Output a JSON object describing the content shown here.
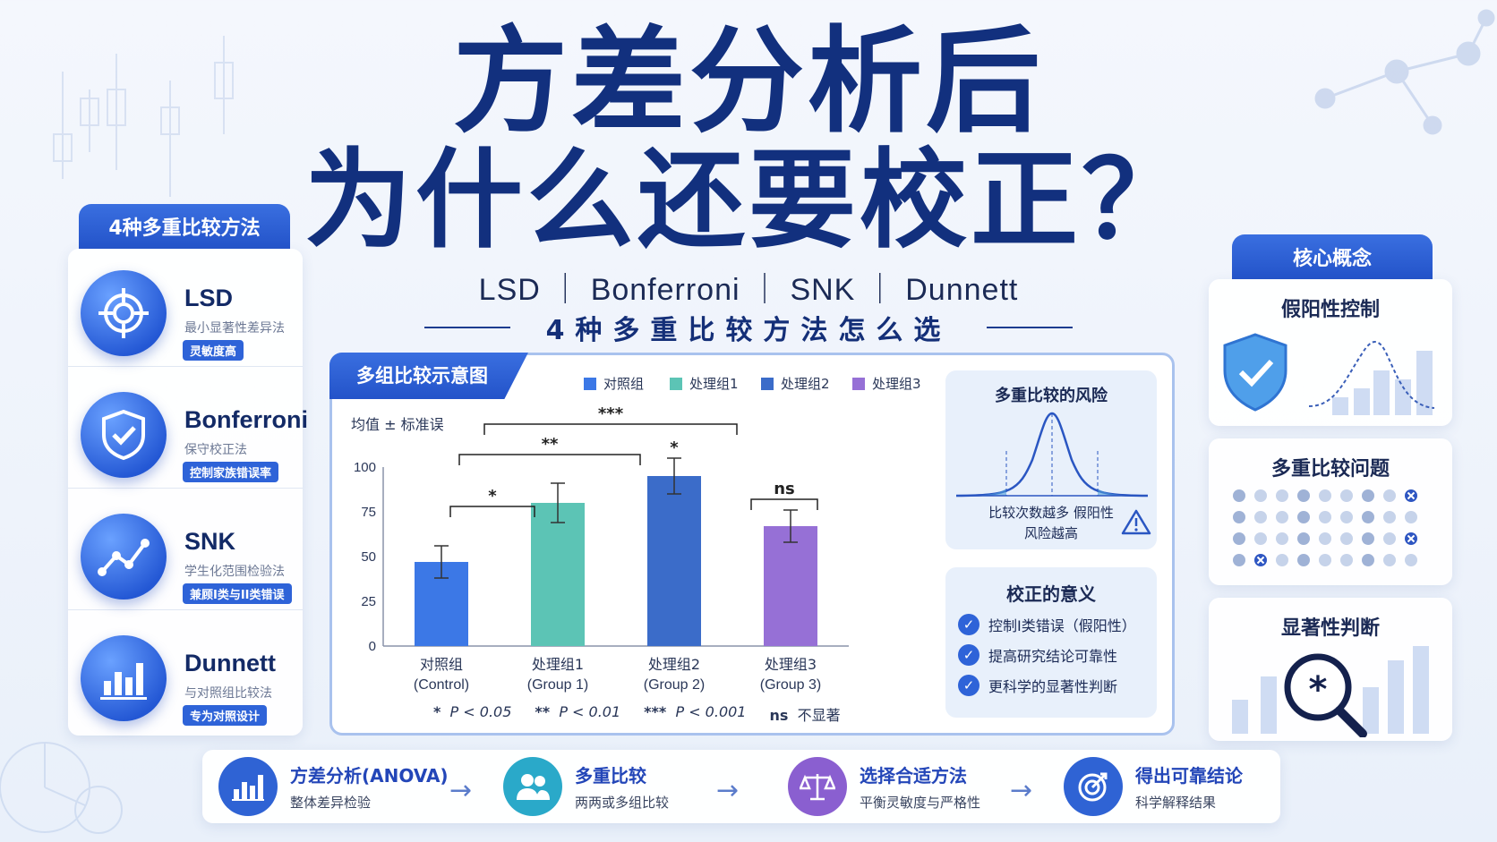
{
  "title": {
    "line1": "方差分析后",
    "line2": "为什么还要校正？"
  },
  "subtitle": "LSD ｜ Bonferroni ｜ SNK ｜ Dunnett",
  "subtitle2": "4种多重比较方法怎么选",
  "left_panel": {
    "header": "4种多重比较方法",
    "methods": [
      {
        "name": "LSD",
        "desc": "最小显著性差异法",
        "tag": "灵敏度高",
        "icon": "target-icon"
      },
      {
        "name": "Bonferroni",
        "desc": "保守校正法",
        "tag": "控制家族错误率",
        "icon": "shield-check-icon"
      },
      {
        "name": "SNK",
        "desc": "学生化范围检验法",
        "tag": "兼顾I类与II类错误",
        "icon": "trend-line-icon"
      },
      {
        "name": "Dunnett",
        "desc": "与对照组比较法",
        "tag": "专为对照设计",
        "icon": "bar-chart-icon"
      }
    ]
  },
  "chart_panel": {
    "header": "多组比较示意图",
    "legend": [
      {
        "label": "对照组",
        "color": "#3c78e6"
      },
      {
        "label": "处理组1",
        "color": "#5cc4b5"
      },
      {
        "label": "处理组2",
        "color": "#3b6cc9"
      },
      {
        "label": "处理组3",
        "color": "#9670d6"
      }
    ],
    "sig_notes": [
      {
        "sym": "*",
        "text": "P < 0.05"
      },
      {
        "sym": "**",
        "text": "P < 0.01"
      },
      {
        "sym": "***",
        "text": "P < 0.001"
      },
      {
        "sym": "ns",
        "text": "不显著"
      }
    ]
  },
  "chart_data": {
    "type": "bar",
    "ylabel": "均值 ± 标准误",
    "ylim": [
      0,
      100
    ],
    "yticks": [
      0,
      25,
      50,
      75,
      100
    ],
    "categories": [
      {
        "line1": "对照组",
        "line2": "(Control)"
      },
      {
        "line1": "处理组1",
        "line2": "(Group 1)"
      },
      {
        "line1": "处理组2",
        "line2": "(Group 2)"
      },
      {
        "line1": "处理组3",
        "line2": "(Group 3)"
      }
    ],
    "values": [
      47,
      80,
      95,
      67
    ],
    "errors": [
      9,
      11,
      10,
      9
    ],
    "colors": [
      "#3c78e6",
      "#5cc4b5",
      "#3b6cc9",
      "#9670d6"
    ],
    "comparisons": [
      {
        "from": 0,
        "to": 1,
        "label": "*"
      },
      {
        "from": 0,
        "to": 2,
        "label": "**"
      },
      {
        "from": 0,
        "to": 3,
        "label": "***"
      },
      {
        "from": 2,
        "to": 2,
        "label": "*"
      },
      {
        "from": 3,
        "to": 3,
        "label": "ns"
      }
    ]
  },
  "risk_box": {
    "title": "多重比较的风险",
    "text": "比较次数越多 假阳性风险越高"
  },
  "meaning_box": {
    "title": "校正的意义",
    "items": [
      "控制I类错误（假阳性）",
      "提高研究结论可靠性",
      "更科学的显著性判断"
    ]
  },
  "right_panel": {
    "header": "核心概念",
    "concepts": [
      {
        "title": "假阳性控制"
      },
      {
        "title": "多重比较问题"
      },
      {
        "title": "显著性判断"
      }
    ]
  },
  "flow": [
    {
      "title": "方差分析(ANOVA)",
      "desc": "整体差异检验",
      "icon": "bar-chart-icon",
      "color": "#2f63d4"
    },
    {
      "title": "多重比较",
      "desc": "两两或多组比较",
      "icon": "users-icon",
      "color": "#2aa9c9"
    },
    {
      "title": "选择合适方法",
      "desc": "平衡灵敏度与严格性",
      "icon": "scale-icon",
      "color": "#8a5fd0"
    },
    {
      "title": "得出可靠结论",
      "desc": "科学解释结果",
      "icon": "target-icon",
      "color": "#2f63d4"
    }
  ]
}
